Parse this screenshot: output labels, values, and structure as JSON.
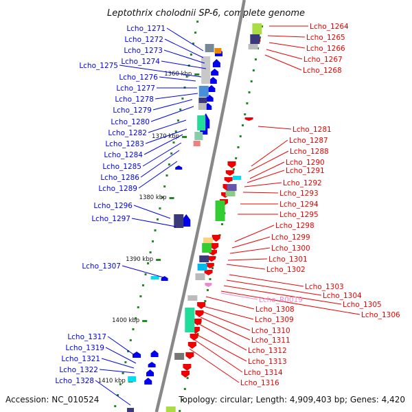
{
  "title": "Leptothrix cholodnii SP-6, complete genome",
  "accession": "Accession: NC_010524",
  "topology": "Topology: circular; Length: 4,909,403 bp; Genes: 4,420",
  "colors": {
    "plus": "#0000ee",
    "minus": "#ee0000",
    "rna": "#ee88cc",
    "axis": "#888888",
    "tick": "#228822"
  },
  "ticks": [
    "1360 kbp",
    "1370 kbp",
    "1380 kbp",
    "1390 kbp",
    "1400 kbp",
    "1410 kbp"
  ],
  "left_labels": [
    "Lcho_1271",
    "Lcho_1272",
    "Lcho_1273",
    "Lcho_1274",
    "Lcho_1275",
    "Lcho_1276",
    "Lcho_1277",
    "Lcho_1278",
    "Lcho_1279",
    "Lcho_1280",
    "Lcho_1282",
    "Lcho_1283",
    "Lcho_1284",
    "Lcho_1285",
    "Lcho_1286",
    "Lcho_1289",
    "Lcho_1296",
    "Lcho_1297",
    "Lcho_1307",
    "Lcho_1317",
    "Lcho_1319",
    "Lcho_1321",
    "Lcho_1322",
    "Lcho_1328"
  ],
  "right_labels": [
    "Lcho_1264",
    "Lcho_1265",
    "Lcho_1266",
    "Lcho_1267",
    "Lcho_1268",
    "Lcho_1281",
    "Lcho_1287",
    "Lcho_1288",
    "Lcho_1290",
    "Lcho_1291",
    "Lcho_1292",
    "Lcho_1293",
    "Lcho_1294",
    "Lcho_1295",
    "Lcho_1298",
    "Lcho_1299",
    "Lcho_1300",
    "Lcho_1301",
    "Lcho_1302",
    "Lcho_1303",
    "Lcho_1304",
    "Lcho_1305",
    "Lcho_1306",
    "Lcho_R0019",
    "Lcho_1308",
    "Lcho_1309",
    "Lcho_1310",
    "Lcho_1311",
    "Lcho_1312",
    "Lcho_1313",
    "Lcho_1314",
    "Lcho_1316"
  ],
  "rna_labels": [
    "Lcho_R0019"
  ]
}
